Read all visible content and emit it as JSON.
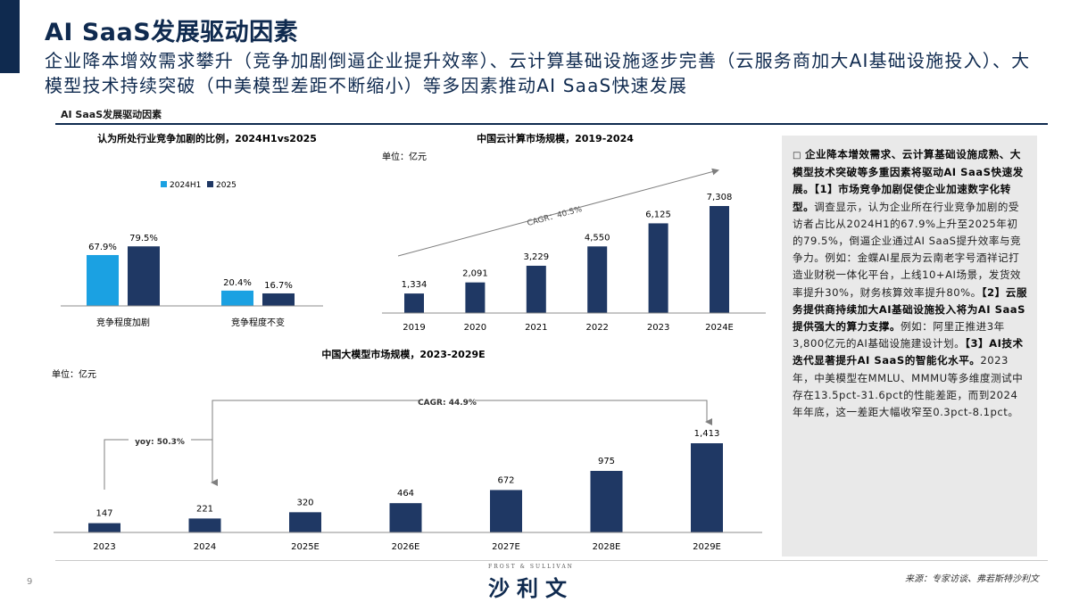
{
  "page": {
    "title": "AI SaaS发展驱动因素",
    "subtitle": "企业降本增效需求攀升（竞争加剧倒逼企业提升效率）、云计算基础设施逐步完善（云服务商加大AI基础设施投入）、大模型技术持续突破（中美模型差距不断缩小）等多因素推动AI SaaS快速发展",
    "section_label": "AI SaaS发展驱动因素",
    "page_number": "9",
    "logo_top": "FROST & SULLIVAN",
    "logo_main": "沙利文",
    "source": "来源：专家访谈、弗若斯特沙利文"
  },
  "colors": {
    "navy": "#1f3864",
    "light_blue": "#1ba1e2",
    "dark_title": "#0f2a4f"
  },
  "side_panel": {
    "bullet_icon": "hollow-square",
    "p1_bold": "企业降本增效需求、云计算基础设施成熟、大模型技术突破等多重因素将驱动AI SaaS快速发展。",
    "p2_tag": "【1】",
    "p2_bold": "市场竞争加剧促使企业加速数字化转型。",
    "p2_text": "调查显示，认为企业所在行业竞争加剧的受访者占比从2024H1的67.9%上升至2025年初的79.5%，倒逼企业通过AI SaaS提升效率与竞争力。例如：金蝶AI星辰为云南老字号酒祥记打造业财税一体化平台，上线10+AI场景，发货效率提升30%，财务核算效率提升80%。",
    "p3_tag": "【2】",
    "p3_bold": "云服务提供商持续加大AI基础设施投入将为AI SaaS提供强大的算力支撑。",
    "p3_text": "例如：阿里正推进3年3,800亿元的AI基础设施建设计划。",
    "p4_tag": "【3】",
    "p4_bold": "AI技术迭代显著提升AI SaaS的智能化水平。",
    "p4_text": "2023年，中美模型在MMLU、MMMU等多维度测试中存在13.5pct-31.6pct的性能差距，而到2024年年底，这一差距大幅收窄至0.3pct-8.1pct。"
  },
  "chart_data": [
    {
      "type": "bar",
      "title": "认为所处行业竞争加剧的比例，2024H1vs2025",
      "categories": [
        "竞争程度加剧",
        "竞争程度不变"
      ],
      "series": [
        {
          "name": "2024H1",
          "values": [
            67.9,
            20.4
          ],
          "labels": [
            "67.9%",
            "20.4%"
          ],
          "color": "#1ba1e2"
        },
        {
          "name": "2025",
          "values": [
            79.5,
            16.7
          ],
          "labels": [
            "79.5%",
            "16.7%"
          ],
          "color": "#1f3864"
        }
      ],
      "ylim": [
        0,
        100
      ],
      "legend": "top"
    },
    {
      "type": "bar",
      "title": "中国云计算市场规模，2019-2024",
      "unit": "单位：亿元",
      "categories": [
        "2019",
        "2020",
        "2021",
        "2022",
        "2023",
        "2024E"
      ],
      "values": [
        1334,
        2091,
        3229,
        4550,
        6125,
        7308
      ],
      "labels": [
        "1,334",
        "2,091",
        "3,229",
        "4,550",
        "6,125",
        "7,308"
      ],
      "annotation": "CAGR：40.5%",
      "ylim": [
        0,
        8000
      ]
    },
    {
      "type": "bar",
      "title": "中国大模型市场规模，2023-2029E",
      "unit": "单位：亿元",
      "categories": [
        "2023",
        "2024",
        "2025E",
        "2026E",
        "2027E",
        "2028E",
        "2029E"
      ],
      "values": [
        147,
        221,
        320,
        464,
        672,
        975,
        1413
      ],
      "labels": [
        "147",
        "221",
        "320",
        "464",
        "672",
        "975",
        "1,413"
      ],
      "annotations": [
        "yoy: 50.3%",
        "CAGR: 44.9%"
      ],
      "ylim": [
        0,
        1500
      ]
    }
  ]
}
